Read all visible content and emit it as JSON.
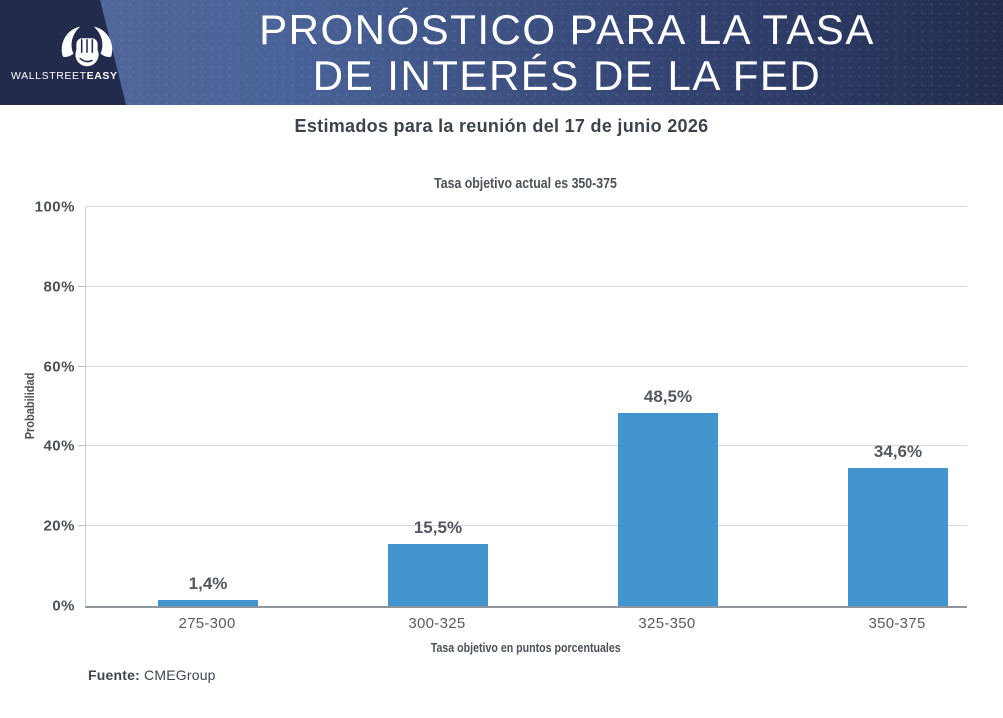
{
  "brand": {
    "wordmark_regular": "WALLSTREET",
    "wordmark_bold": "EASY",
    "logo_icon": "bull-fist-icon"
  },
  "header": {
    "title_line1": "PRONÓSTICO PARA LA TASA",
    "title_line2": "DE INTERÉS DE LA FED",
    "subtitle": "Estimados para la reunión del 17 de junio 2026"
  },
  "chart_data": {
    "type": "bar",
    "title": "Tasa objetivo actual es 350-375",
    "categories": [
      "275-300",
      "300-325",
      "325-350",
      "350-375"
    ],
    "values": [
      1.4,
      15.5,
      48.5,
      34.6
    ],
    "value_labels": [
      "1,4%",
      "15,5%",
      "48,5%",
      "34,6%"
    ],
    "xlabel": "Tasa objetivo en puntos porcentuales",
    "ylabel": "Probabilidad",
    "ylim": [
      0,
      100
    ],
    "yticks": [
      "0%",
      "20%",
      "40%",
      "60%",
      "80%",
      "100%"
    ],
    "grid": true,
    "legend": false
  },
  "footer": {
    "source_label": "Fuente:",
    "source_value": "CMEGroup"
  },
  "colors": {
    "bar": "#4295ce",
    "header_gradient_start": "#55689b",
    "header_gradient_end": "#232c4e",
    "logo_panel": "#222b4b",
    "text_dark": "#3d434c",
    "text_gray": "#53575e"
  }
}
